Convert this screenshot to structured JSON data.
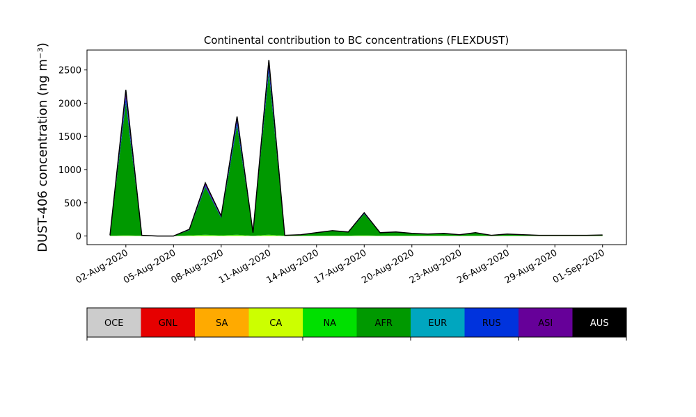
{
  "chart_data": {
    "type": "stacked-area",
    "title": "Continental contribution to BC concentrations (FLEXDUST)",
    "y_label": "DUST-406 concentration (ng m⁻³)",
    "x": [
      "01-Aug-2020",
      "02-Aug-2020",
      "03-Aug-2020",
      "04-Aug-2020",
      "05-Aug-2020",
      "06-Aug-2020",
      "07-Aug-2020",
      "08-Aug-2020",
      "09-Aug-2020",
      "10-Aug-2020",
      "11-Aug-2020",
      "12-Aug-2020",
      "13-Aug-2020",
      "14-Aug-2020",
      "15-Aug-2020",
      "16-Aug-2020",
      "17-Aug-2020",
      "18-Aug-2020",
      "19-Aug-2020",
      "20-Aug-2020",
      "21-Aug-2020",
      "22-Aug-2020",
      "23-Aug-2020",
      "24-Aug-2020",
      "25-Aug-2020",
      "26-Aug-2020",
      "27-Aug-2020",
      "28-Aug-2020",
      "29-Aug-2020",
      "30-Aug-2020",
      "31-Aug-2020",
      "01-Sep-2020"
    ],
    "xticks": [
      "02-Aug-2020",
      "05-Aug-2020",
      "08-Aug-2020",
      "11-Aug-2020",
      "14-Aug-2020",
      "17-Aug-2020",
      "20-Aug-2020",
      "23-Aug-2020",
      "26-Aug-2020",
      "29-Aug-2020",
      "01-Sep-2020"
    ],
    "ylim": [
      -130,
      2800
    ],
    "yticks": [
      0,
      500,
      1000,
      1500,
      2000,
      2500
    ],
    "series": [
      {
        "name": "OCE",
        "color": "#cccccc",
        "values": [
          0,
          0,
          0,
          0,
          0,
          0,
          0,
          0,
          0,
          0,
          0,
          0,
          0,
          0,
          0,
          0,
          0,
          0,
          0,
          0,
          0,
          0,
          0,
          0,
          0,
          0,
          0,
          0,
          0,
          0,
          0,
          0
        ]
      },
      {
        "name": "GNL",
        "color": "#e60000",
        "values": [
          0,
          0,
          0,
          0,
          0,
          0,
          0,
          0,
          0,
          0,
          0,
          0,
          0,
          0,
          0,
          0,
          0,
          0,
          0,
          0,
          0,
          0,
          0,
          0,
          0,
          0,
          0,
          0,
          0,
          0,
          0,
          0
        ]
      },
      {
        "name": "SA",
        "color": "#ffaa00",
        "values": [
          0,
          0,
          0,
          0,
          0,
          0,
          0,
          0,
          0,
          0,
          0,
          0,
          0,
          0,
          0,
          0,
          0,
          0,
          0,
          0,
          0,
          0,
          0,
          0,
          0,
          0,
          0,
          0,
          0,
          0,
          0,
          0
        ]
      },
      {
        "name": "CA",
        "color": "#ccff00",
        "values": [
          2,
          5,
          2,
          0,
          0,
          5,
          10,
          5,
          10,
          2,
          10,
          2,
          2,
          2,
          3,
          2,
          5,
          2,
          2,
          2,
          2,
          2,
          1,
          2,
          1,
          1,
          1,
          1,
          1,
          1,
          1,
          1
        ]
      },
      {
        "name": "NA",
        "color": "#00e000",
        "values": [
          1,
          5,
          1,
          0,
          0,
          3,
          10,
          5,
          10,
          2,
          10,
          2,
          2,
          3,
          3,
          3,
          5,
          3,
          3,
          2,
          2,
          2,
          1,
          2,
          1,
          1,
          1,
          1,
          1,
          1,
          1,
          1
        ]
      },
      {
        "name": "AFR",
        "color": "#009900",
        "values": [
          5,
          2000,
          5,
          0,
          0,
          80,
          720,
          260,
          1650,
          40,
          2450,
          6,
          14,
          42,
          70,
          50,
          320,
          40,
          50,
          32,
          24,
          33,
          16,
          42,
          6,
          24,
          16,
          6,
          6,
          6,
          6,
          11
        ]
      },
      {
        "name": "EUR",
        "color": "#00a6bf",
        "values": [
          0,
          0,
          0,
          0,
          0,
          0,
          0,
          0,
          0,
          0,
          0,
          0,
          0,
          0,
          0,
          0,
          0,
          0,
          0,
          0,
          0,
          0,
          0,
          0,
          0,
          0,
          0,
          0,
          0,
          0,
          0,
          0
        ]
      },
      {
        "name": "RUS",
        "color": "#0033dd",
        "values": [
          1,
          80,
          1,
          0,
          0,
          5,
          20,
          10,
          60,
          3,
          80,
          0,
          1,
          1,
          2,
          2,
          8,
          2,
          2,
          1,
          1,
          1,
          1,
          2,
          1,
          1,
          1,
          1,
          1,
          1,
          1,
          1
        ]
      },
      {
        "name": "ASI",
        "color": "#660099",
        "values": [
          1,
          110,
          1,
          0,
          0,
          7,
          40,
          20,
          70,
          3,
          100,
          0,
          1,
          2,
          2,
          3,
          12,
          3,
          3,
          3,
          1,
          2,
          1,
          3,
          1,
          3,
          1,
          1,
          1,
          1,
          1,
          1
        ]
      },
      {
        "name": "AUS",
        "color": "#000000",
        "values": [
          0,
          0,
          0,
          0,
          0,
          0,
          0,
          0,
          0,
          0,
          0,
          0,
          0,
          0,
          0,
          0,
          0,
          0,
          0,
          0,
          0,
          0,
          0,
          0,
          0,
          0,
          0,
          0,
          0,
          0,
          0,
          0
        ]
      }
    ]
  }
}
